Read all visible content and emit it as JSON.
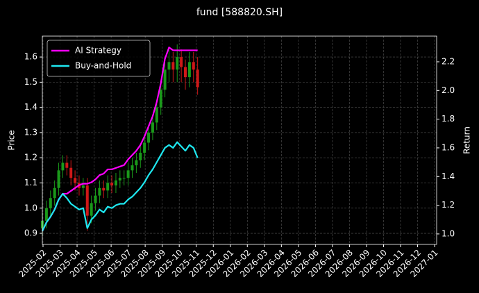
{
  "chart_data": {
    "type": "candlestick",
    "title": "fund [588820.SH]",
    "ylabel": "Price",
    "y2label": "Return",
    "x": [
      2025.08,
      2025.1,
      2025.12,
      2025.14,
      2025.16,
      2025.18,
      2025.2,
      2025.22,
      2025.24,
      2025.26,
      2025.28,
      2025.3,
      2025.32,
      2025.34,
      2025.36,
      2025.38,
      2025.4,
      2025.42,
      2025.44,
      2025.46,
      2025.48,
      2025.5,
      2025.52,
      2025.54,
      2025.56,
      2025.58,
      2025.6,
      2025.62,
      2025.64,
      2025.66,
      2025.68,
      2025.7,
      2025.72,
      2025.74,
      2025.76,
      2025.78,
      2025.8,
      2025.82,
      2025.84
    ],
    "candles": {
      "open": [
        0.92,
        0.95,
        1.0,
        1.04,
        1.08,
        1.15,
        1.18,
        1.16,
        1.12,
        1.1,
        1.08,
        1.09,
        0.97,
        1.02,
        1.05,
        1.08,
        1.07,
        1.1,
        1.09,
        1.11,
        1.12,
        1.12,
        1.15,
        1.17,
        1.19,
        1.22,
        1.26,
        1.3,
        1.34,
        1.4,
        1.47,
        1.55,
        1.58,
        1.55,
        1.6,
        1.56,
        1.52,
        1.58,
        1.55
      ],
      "high": [
        0.98,
        1.03,
        1.07,
        1.11,
        1.18,
        1.21,
        1.21,
        1.19,
        1.15,
        1.13,
        1.12,
        1.12,
        1.05,
        1.08,
        1.11,
        1.11,
        1.13,
        1.13,
        1.14,
        1.15,
        1.15,
        1.18,
        1.2,
        1.22,
        1.25,
        1.29,
        1.33,
        1.37,
        1.43,
        1.5,
        1.58,
        1.63,
        1.62,
        1.65,
        1.63,
        1.59,
        1.62,
        1.62,
        1.6
      ],
      "low": [
        0.89,
        0.92,
        0.97,
        1.01,
        1.05,
        1.12,
        1.13,
        1.09,
        1.07,
        1.05,
        1.05,
        0.91,
        0.94,
        0.99,
        1.02,
        1.04,
        1.04,
        1.06,
        1.06,
        1.08,
        1.09,
        1.09,
        1.12,
        1.14,
        1.16,
        1.19,
        1.23,
        1.27,
        1.31,
        1.37,
        1.44,
        1.5,
        1.5,
        1.5,
        1.5,
        1.47,
        1.48,
        1.5,
        1.45
      ],
      "close": [
        0.95,
        1.0,
        1.04,
        1.08,
        1.15,
        1.18,
        1.16,
        1.12,
        1.1,
        1.08,
        1.09,
        0.97,
        1.02,
        1.05,
        1.08,
        1.07,
        1.1,
        1.09,
        1.11,
        1.12,
        1.12,
        1.15,
        1.17,
        1.19,
        1.22,
        1.26,
        1.3,
        1.34,
        1.4,
        1.47,
        1.55,
        1.58,
        1.55,
        1.6,
        1.56,
        1.52,
        1.58,
        1.55,
        1.48
      ],
      "up_color": "#1a9a1a",
      "down_color": "#d01818"
    },
    "series": [
      {
        "name": "AI Strategy",
        "color": "#ff00ff",
        "axis": "y2",
        "values": [
          1.02,
          1.08,
          1.12,
          1.17,
          1.24,
          1.28,
          1.28,
          1.3,
          1.32,
          1.34,
          1.35,
          1.35,
          1.36,
          1.38,
          1.41,
          1.42,
          1.45,
          1.45,
          1.46,
          1.47,
          1.48,
          1.52,
          1.55,
          1.58,
          1.62,
          1.68,
          1.75,
          1.82,
          1.92,
          2.05,
          2.22,
          2.3,
          2.28,
          2.28,
          2.28,
          2.28,
          2.28,
          2.28,
          2.28
        ]
      },
      {
        "name": "Buy-and-Hold",
        "color": "#1ee8f0",
        "axis": "y2",
        "values": [
          1.02,
          1.08,
          1.12,
          1.17,
          1.24,
          1.28,
          1.25,
          1.21,
          1.19,
          1.17,
          1.18,
          1.04,
          1.1,
          1.13,
          1.17,
          1.15,
          1.19,
          1.18,
          1.2,
          1.21,
          1.21,
          1.24,
          1.26,
          1.29,
          1.32,
          1.36,
          1.41,
          1.45,
          1.5,
          1.55,
          1.6,
          1.62,
          1.6,
          1.64,
          1.61,
          1.58,
          1.62,
          1.6,
          1.53
        ]
      }
    ],
    "xlim": [
      2025.08,
      2027.01
    ],
    "xticks": [
      {
        "value": 2025.0833,
        "label": "2025-02"
      },
      {
        "value": 2025.1667,
        "label": "2025-03"
      },
      {
        "value": 2025.25,
        "label": "2025-04"
      },
      {
        "value": 2025.3333,
        "label": "2025-05"
      },
      {
        "value": 2025.4167,
        "label": "2025-06"
      },
      {
        "value": 2025.5,
        "label": "2025-07"
      },
      {
        "value": 2025.5833,
        "label": "2025-08"
      },
      {
        "value": 2025.6667,
        "label": "2025-09"
      },
      {
        "value": 2025.75,
        "label": "2025-10"
      },
      {
        "value": 2025.8333,
        "label": "2025-11"
      },
      {
        "value": 2025.9167,
        "label": "2025-12"
      },
      {
        "value": 2026.0,
        "label": "2026-01"
      },
      {
        "value": 2026.0833,
        "label": "2026-02"
      },
      {
        "value": 2026.1667,
        "label": "2026-03"
      },
      {
        "value": 2026.25,
        "label": "2026-04"
      },
      {
        "value": 2026.3333,
        "label": "2026-05"
      },
      {
        "value": 2026.4167,
        "label": "2026-06"
      },
      {
        "value": 2026.5,
        "label": "2026-07"
      },
      {
        "value": 2026.5833,
        "label": "2026-08"
      },
      {
        "value": 2026.6667,
        "label": "2026-09"
      },
      {
        "value": 2026.75,
        "label": "2026-10"
      },
      {
        "value": 2026.8333,
        "label": "2026-11"
      },
      {
        "value": 2026.9167,
        "label": "2026-12"
      },
      {
        "value": 2027.0,
        "label": "2027-01"
      }
    ],
    "ylim": [
      0.856,
      1.683
    ],
    "yticks": [
      0.9,
      {
        "value": 1,
        "label": "1.0"
      },
      1.1,
      1.2,
      1.3,
      1.4,
      1.5,
      1.6
    ],
    "y2lim": [
      0.927,
      2.379
    ],
    "y2ticks": [
      {
        "value": 1,
        "label": "1.0"
      },
      1.2,
      1.4,
      1.6,
      1.8,
      {
        "value": 2,
        "label": "2.0"
      },
      2.2
    ],
    "grid": true,
    "legend": "upper left"
  }
}
